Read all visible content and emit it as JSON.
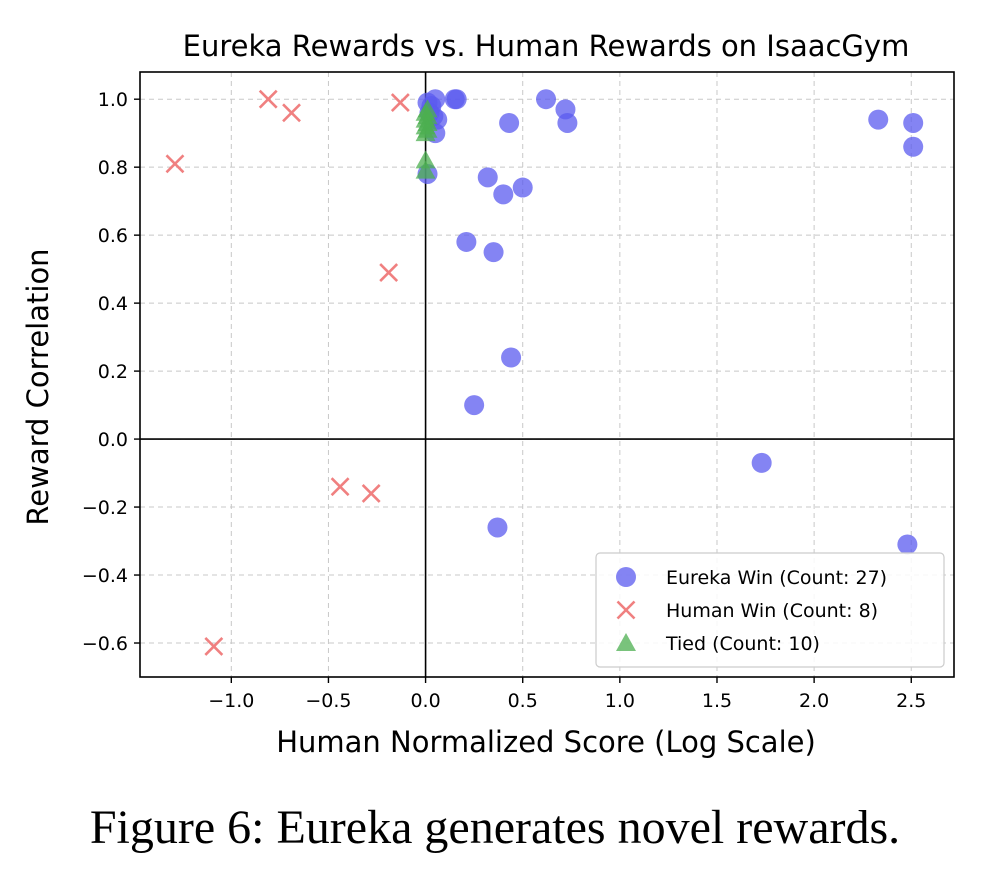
{
  "caption": "Figure 6: Eureka generates novel rewards.",
  "chart_data": {
    "type": "scatter",
    "title": "Eureka Rewards vs. Human Rewards on IsaacGym",
    "xlabel": "Human Normalized Score (Log Scale)",
    "ylabel": "Reward Correlation",
    "xlim": [
      -1.47,
      2.72
    ],
    "ylim": [
      -0.7,
      1.08
    ],
    "xticks": [
      -1.0,
      -0.5,
      0.0,
      0.5,
      1.0,
      1.5,
      2.0,
      2.5
    ],
    "xtick_labels": [
      "−1.0",
      "−0.5",
      "0.0",
      "0.5",
      "1.0",
      "1.5",
      "2.0",
      "2.5"
    ],
    "yticks": [
      -0.6,
      -0.4,
      -0.2,
      0.0,
      0.2,
      0.4,
      0.6,
      0.8,
      1.0
    ],
    "ytick_labels": [
      "−0.6",
      "−0.4",
      "−0.2",
      "0.0",
      "0.2",
      "0.4",
      "0.6",
      "0.8",
      "1.0"
    ],
    "grid": true,
    "reference_lines": {
      "x": 0,
      "y": 0
    },
    "legend_position": "lower-right",
    "series": [
      {
        "name": "Eureka Win (Count: 27)",
        "marker": "circle",
        "color": "#5b5bef",
        "points": [
          [
            0.01,
            0.99
          ],
          [
            0.03,
            0.98
          ],
          [
            0.05,
            1.0
          ],
          [
            0.02,
            0.96
          ],
          [
            0.04,
            0.95
          ],
          [
            0.06,
            0.94
          ],
          [
            0.05,
            0.9
          ],
          [
            0.01,
            0.78
          ],
          [
            0.15,
            1.0
          ],
          [
            0.16,
            1.0
          ],
          [
            0.62,
            1.0
          ],
          [
            0.72,
            0.97
          ],
          [
            0.73,
            0.93
          ],
          [
            0.43,
            0.93
          ],
          [
            0.32,
            0.77
          ],
          [
            0.4,
            0.72
          ],
          [
            0.5,
            0.74
          ],
          [
            0.21,
            0.58
          ],
          [
            0.35,
            0.55
          ],
          [
            0.44,
            0.24
          ],
          [
            0.25,
            0.1
          ],
          [
            0.37,
            -0.26
          ],
          [
            1.73,
            -0.07
          ],
          [
            2.33,
            0.94
          ],
          [
            2.51,
            0.93
          ],
          [
            2.51,
            0.86
          ],
          [
            2.48,
            -0.31
          ]
        ]
      },
      {
        "name": "Human Win (Count: 8)",
        "marker": "x",
        "color": "#f08080",
        "points": [
          [
            -0.81,
            1.0
          ],
          [
            -0.69,
            0.96
          ],
          [
            -0.13,
            0.99
          ],
          [
            -1.29,
            0.81
          ],
          [
            -0.19,
            0.49
          ],
          [
            -0.44,
            -0.14
          ],
          [
            -0.28,
            -0.16
          ],
          [
            -1.09,
            -0.61
          ]
        ]
      },
      {
        "name": "Tied (Count: 10)",
        "marker": "triangle",
        "color": "#4caf50",
        "points": [
          [
            0.0,
            0.96
          ],
          [
            0.01,
            0.95
          ],
          [
            0.0,
            0.94
          ],
          [
            0.01,
            0.93
          ],
          [
            0.0,
            0.92
          ],
          [
            0.01,
            0.91
          ],
          [
            0.0,
            0.9
          ],
          [
            0.01,
            0.97
          ],
          [
            0.0,
            0.82
          ],
          [
            0.0,
            0.79
          ]
        ]
      }
    ]
  }
}
